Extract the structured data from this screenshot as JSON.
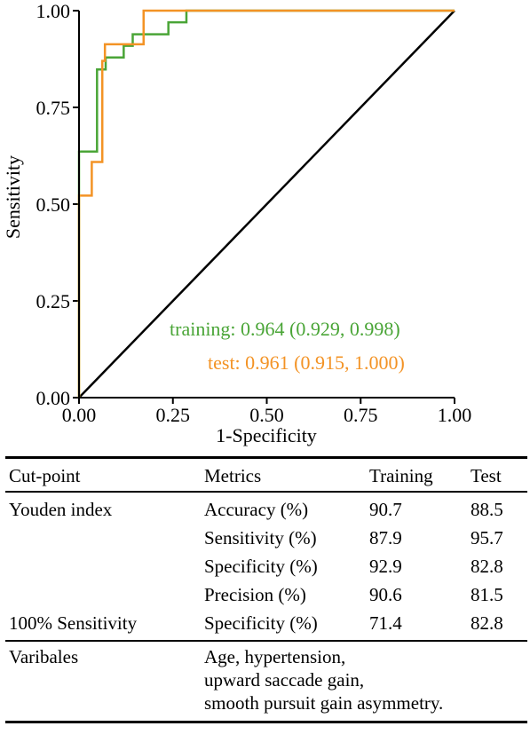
{
  "chart_data": {
    "type": "line",
    "xlabel": "1-Specificity",
    "ylabel": "Sensitivity",
    "xlim": [
      0,
      1
    ],
    "ylim": [
      0,
      1
    ],
    "xticks": [
      "0.00",
      "0.25",
      "0.50",
      "0.75",
      "1.00"
    ],
    "yticks": [
      "0.00",
      "0.25",
      "0.50",
      "0.75",
      "1.00"
    ],
    "grid": false,
    "series": [
      {
        "name": "training",
        "color": "#4aa537",
        "legend": "training: 0.964 (0.929, 0.998)",
        "x": [
          0,
          0,
          0.048,
          0.048,
          0.071,
          0.071,
          0.119,
          0.119,
          0.143,
          0.143,
          0.238,
          0.238,
          0.286,
          0.286,
          1.0
        ],
        "y": [
          0,
          0.636,
          0.636,
          0.848,
          0.848,
          0.879,
          0.879,
          0.909,
          0.909,
          0.939,
          0.939,
          0.97,
          0.97,
          1.0,
          1.0
        ]
      },
      {
        "name": "test",
        "color": "#f39325",
        "legend": "test: 0.961 (0.915, 1.000)",
        "x": [
          0,
          0,
          0.034,
          0.034,
          0.062,
          0.062,
          0.069,
          0.069,
          0.172,
          0.172,
          1.0
        ],
        "y": [
          0,
          0.522,
          0.522,
          0.609,
          0.609,
          0.87,
          0.87,
          0.913,
          0.913,
          1.0,
          1.0
        ]
      },
      {
        "name": "",
        "color": "#000000",
        "x": [
          0,
          1
        ],
        "y": [
          0,
          1
        ]
      }
    ]
  },
  "table": {
    "headers": [
      "Cut-point",
      "Metrics",
      "Training",
      "Test"
    ],
    "rows": [
      [
        "Youden index",
        "Accuracy (%)",
        "90.7",
        "88.5"
      ],
      [
        "",
        "Sensitivity (%)",
        "87.9",
        "95.7"
      ],
      [
        "",
        "Specificity (%)",
        "92.9",
        "82.8"
      ],
      [
        "",
        "Precision (%)",
        "90.6",
        "81.5"
      ],
      [
        "100% Sensitivity",
        "Specificity (%)",
        "71.4",
        "82.8"
      ]
    ],
    "variables_label": "Varibales",
    "variables_lines": [
      "Age, hypertension,",
      "upward saccade gain,",
      "smooth pursuit gain asymmetry."
    ]
  }
}
